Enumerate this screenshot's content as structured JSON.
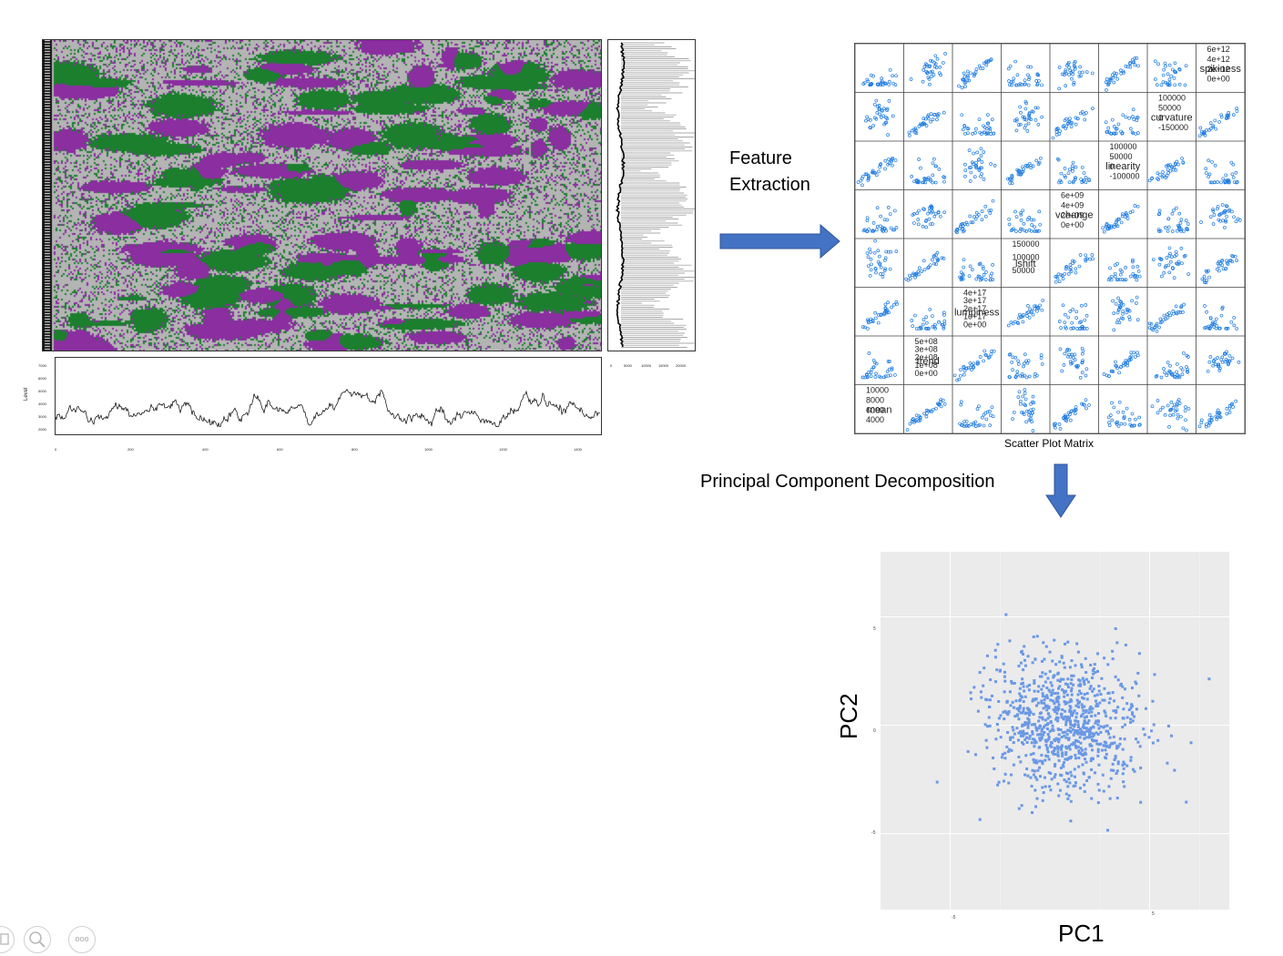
{
  "steps": {
    "feature_extraction": [
      "Feature",
      "Extraction"
    ],
    "pca": "Principal Component Decomposition"
  },
  "scatter_matrix": {
    "title": "Scatter Plot Matrix",
    "features": [
      "mean",
      "trend",
      "lumpiness",
      "lshift",
      "vchange",
      "linearity",
      "curvature",
      "spikiness"
    ],
    "diag_labels": [
      "mean",
      "trend",
      "lumpiness",
      "lshift",
      "vchange",
      "linearity",
      "curvature",
      "spikiness"
    ],
    "diag_ticks": [
      [
        "10000",
        "8000",
        "6000",
        "4000"
      ],
      [
        "5e+08",
        "3e+08",
        "2e+08",
        "1e+08",
        "0e+00"
      ],
      [
        "4e+17",
        "3e+17",
        "2e+17",
        "1e+17",
        "0e+00"
      ],
      [
        "150000",
        "100000",
        "50000"
      ],
      [
        "6e+09",
        "4e+09",
        "2e+09",
        "0e+00"
      ],
      [
        "100000",
        "50000",
        "0",
        "-100000"
      ],
      [
        "100000",
        "50000",
        "0",
        "-150000"
      ],
      [
        "6e+12",
        "4e+12",
        "2e+12",
        "0e+00"
      ]
    ],
    "point_color": "#1e7be0"
  },
  "heatmap": {
    "colors": [
      "#8a2ea0",
      "#1b7f2e",
      "#b4b4b4"
    ]
  },
  "side_axis": {
    "ticks": [
      "0",
      "5000",
      "10000",
      "15000",
      "20000"
    ]
  },
  "level_plot": {
    "ylabel": "Level",
    "yticks": [
      "7000",
      "6000",
      "5000",
      "4000",
      "3000",
      "2000"
    ],
    "xticks": [
      "0",
      "200",
      "400",
      "600",
      "800",
      "1000",
      "1200",
      "1400"
    ]
  },
  "pca_plot": {
    "xlabel": "PC1",
    "ylabel": "PC2",
    "xticks": [
      "-5",
      "5"
    ],
    "yticks": [
      "5",
      "0",
      "-5"
    ],
    "point_color": "#6a98e6",
    "background": "#ebebeb",
    "outlier": {
      "x": -2.2,
      "y": 5.1
    }
  },
  "colors": {
    "arrow": "#4472c4",
    "arrow_border": "#2f5597"
  },
  "toolbar": {
    "icons": [
      "copy-icon",
      "zoom-icon",
      "more-options-icon"
    ],
    "more_label": "ooo"
  }
}
